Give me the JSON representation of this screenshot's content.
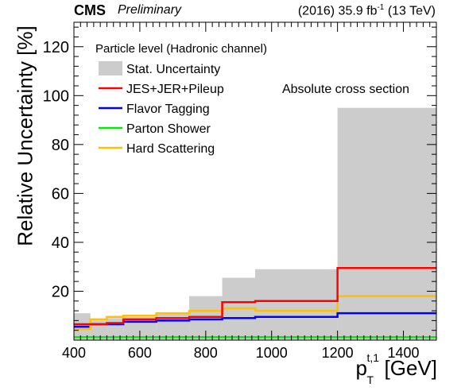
{
  "header": {
    "cms": "CMS",
    "preliminary": "Preliminary",
    "lumi_prefix": "(2016) 35.9 fb",
    "lumi_exp": "-1",
    "lumi_suffix": " (13 TeV)"
  },
  "chart_data": {
    "type": "step",
    "xlabel_main": "p",
    "xlabel_sup": "t,1",
    "xlabel_sub": "T",
    "xlabel_unit": "[GeV]",
    "ylabel": "Relative Uncertainty [%]",
    "xlim": [
      400,
      1500
    ],
    "ylim": [
      0,
      130
    ],
    "xticks": [
      400,
      600,
      800,
      1000,
      1200,
      1400
    ],
    "yticks": [
      20,
      40,
      60,
      80,
      100,
      120
    ],
    "annotation": "Absolute cross section",
    "legend_title": "Particle level (Hadronic channel)",
    "bin_edges": [
      400,
      450,
      500,
      550,
      650,
      750,
      850,
      950,
      1200,
      1500
    ],
    "stat": {
      "name": "Stat. Uncertainty",
      "color": "#cccccc",
      "values": [
        11,
        8,
        9,
        9.5,
        11,
        18,
        25.5,
        29,
        95
      ]
    },
    "series": [
      {
        "name": "JES+JER+Pileup",
        "color": "#ff0000",
        "values": [
          6.5,
          6.5,
          7,
          8.5,
          9,
          9.5,
          15.5,
          16,
          29.5
        ]
      },
      {
        "name": "Flavor Tagging",
        "color": "#0000ff",
        "values": [
          5.5,
          6.5,
          6.5,
          7.5,
          8,
          8.5,
          9,
          9.5,
          11
        ]
      },
      {
        "name": "Parton Shower",
        "color": "#00ee00",
        "values": [
          1.2,
          1.2,
          1.2,
          1.2,
          1.2,
          1.2,
          1.2,
          1.2,
          1.2
        ]
      },
      {
        "name": "Hard Scattering",
        "color": "#ffc000",
        "values": [
          4.5,
          8.5,
          9.5,
          10,
          11,
          12,
          13,
          12,
          18
        ]
      }
    ]
  }
}
